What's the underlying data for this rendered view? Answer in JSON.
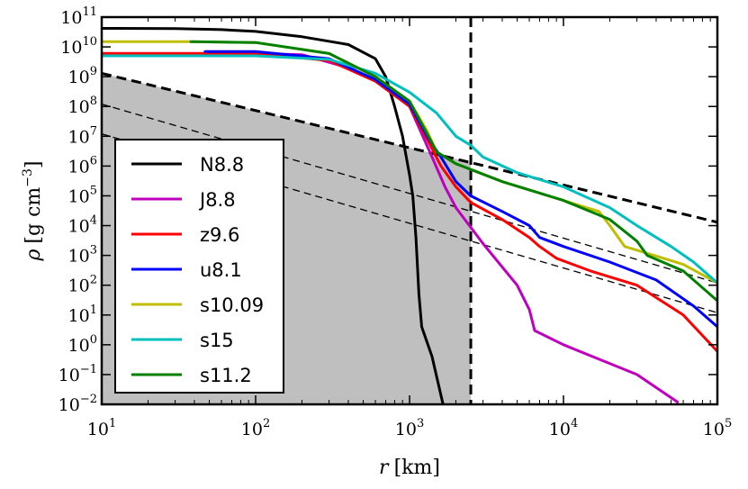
{
  "chart_data": {
    "type": "line",
    "title": "",
    "xlabel": {
      "symbol": "r",
      "unit": "[km]"
    },
    "ylabel": {
      "symbol": "ρ",
      "unit": "[g cm",
      "unit_exp": "−3",
      "unit_close": "]"
    },
    "x_scale": "log",
    "y_scale": "log",
    "xlim": [
      10,
      100000
    ],
    "ylim": [
      0.01,
      100000000000
    ],
    "x_ticks": [
      {
        "value": 10,
        "base": "10",
        "exp": "1"
      },
      {
        "value": 100,
        "base": "10",
        "exp": "2"
      },
      {
        "value": 1000,
        "base": "10",
        "exp": "3"
      },
      {
        "value": 10000,
        "base": "10",
        "exp": "4"
      },
      {
        "value": 100000,
        "base": "10",
        "exp": "5"
      }
    ],
    "y_ticks": [
      {
        "value": 0.01,
        "base": "10",
        "exp": "−2"
      },
      {
        "value": 0.1,
        "base": "10",
        "exp": "−1"
      },
      {
        "value": 1,
        "base": "10",
        "exp": "0"
      },
      {
        "value": 10,
        "base": "10",
        "exp": "1"
      },
      {
        "value": 100,
        "base": "10",
        "exp": "2"
      },
      {
        "value": 1000,
        "base": "10",
        "exp": "3"
      },
      {
        "value": 10000,
        "base": "10",
        "exp": "4"
      },
      {
        "value": 100000,
        "base": "10",
        "exp": "5"
      },
      {
        "value": 1000000,
        "base": "10",
        "exp": "6"
      },
      {
        "value": 10000000,
        "base": "10",
        "exp": "7"
      },
      {
        "value": 100000000,
        "base": "10",
        "exp": "8"
      },
      {
        "value": 1000000000,
        "base": "10",
        "exp": "9"
      },
      {
        "value": 10000000000,
        "base": "10",
        "exp": "10"
      },
      {
        "value": 100000000000,
        "base": "10",
        "exp": "11"
      }
    ],
    "legend_position": "lower-left",
    "series": [
      {
        "name": "N8.8",
        "color": "#000000",
        "points": [
          [
            10,
            42000000000.0
          ],
          [
            30,
            41000000000.0
          ],
          [
            60,
            38000000000.0
          ],
          [
            100,
            33000000000.0
          ],
          [
            200,
            22000000000.0
          ],
          [
            400,
            12000000000.0
          ],
          [
            600,
            4000000000.0
          ],
          [
            700,
            1000000000.0
          ],
          [
            800,
            100000000.0
          ],
          [
            900,
            10000000.0
          ],
          [
            1000,
            500000.0
          ],
          [
            1050,
            100000.0
          ],
          [
            1100,
            4000.0
          ],
          [
            1150,
            50
          ],
          [
            1200,
            4
          ],
          [
            1400,
            0.4
          ],
          [
            1650,
            0.01
          ]
        ]
      },
      {
        "name": "J8.8",
        "color": "#bf00bf",
        "points": [
          [
            10,
            6000000000.0
          ],
          [
            30,
            6000000000.0
          ],
          [
            100,
            6000000000.0
          ],
          [
            200,
            5500000000.0
          ],
          [
            400,
            2000000000.0
          ],
          [
            600,
            800000000.0
          ],
          [
            1000,
            100000000.0
          ],
          [
            1400,
            2000000.0
          ],
          [
            1700,
            200000.0
          ],
          [
            2000,
            40000.0
          ],
          [
            3000,
            2500.0
          ],
          [
            5000,
            100.0
          ],
          [
            6000,
            15
          ],
          [
            6500,
            3
          ],
          [
            10000,
            1
          ],
          [
            30000,
            0.1
          ],
          [
            55000,
            0.012
          ]
        ]
      },
      {
        "name": "z9.6",
        "color": "#ff0000",
        "points": [
          [
            10,
            6000000000.0
          ],
          [
            100,
            6000000000.0
          ],
          [
            300,
            3500000000.0
          ],
          [
            600,
            700000000.0
          ],
          [
            1000,
            100000000.0
          ],
          [
            1300,
            8000000.0
          ],
          [
            1600,
            1000000.0
          ],
          [
            2000,
            200000.0
          ],
          [
            2500,
            60000.0
          ],
          [
            4000,
            16000.0
          ],
          [
            6000,
            4000.0
          ],
          [
            7000,
            2000.0
          ],
          [
            9000,
            800.0
          ],
          [
            15000,
            300.0
          ],
          [
            30000,
            100.0
          ],
          [
            60000,
            10.0
          ],
          [
            100000,
            0.6
          ]
        ]
      },
      {
        "name": "u8.1",
        "color": "#0000ff",
        "points": [
          [
            47,
            7000000000.0
          ],
          [
            100,
            7000000000.0
          ],
          [
            300,
            4000000000.0
          ],
          [
            600,
            800000000.0
          ],
          [
            1000,
            120000000.0
          ],
          [
            1300,
            10000000.0
          ],
          [
            1600,
            2000000.0
          ],
          [
            2000,
            300000.0
          ],
          [
            2500,
            100000.0
          ],
          [
            4000,
            30000.0
          ],
          [
            6000,
            10000.0
          ],
          [
            7000,
            4000.0
          ],
          [
            10000,
            2000.0
          ],
          [
            20000,
            600.0
          ],
          [
            40000,
            150.0
          ],
          [
            70000,
            20.0
          ],
          [
            100000,
            4
          ]
        ]
      },
      {
        "name": "s10.09",
        "color": "#bfbf00",
        "points": [
          [
            10,
            15000000000.0
          ],
          [
            38,
            15000000000.0
          ],
          [
            100,
            14000000000.0
          ],
          [
            300,
            6000000000.0
          ],
          [
            600,
            1000000000.0
          ],
          [
            1000,
            150000000.0
          ],
          [
            1300,
            15000000.0
          ],
          [
            1500,
            3000000.0
          ],
          [
            2000,
            1200000.0
          ],
          [
            4000,
            300000.0
          ],
          [
            10000,
            70000.0
          ],
          [
            17000,
            30000.0
          ],
          [
            20000,
            10000.0
          ],
          [
            25000,
            2000.0
          ],
          [
            30000,
            1500.0
          ],
          [
            60000,
            500.0
          ],
          [
            100000,
            120.0
          ]
        ]
      },
      {
        "name": "s15",
        "color": "#00bfbf",
        "points": [
          [
            10,
            5000000000.0
          ],
          [
            100,
            5000000000.0
          ],
          [
            300,
            3800000000.0
          ],
          [
            600,
            1300000000.0
          ],
          [
            1000,
            300000000.0
          ],
          [
            1500,
            60000000.0
          ],
          [
            2000,
            10000000.0
          ],
          [
            2500,
            5000000.0
          ],
          [
            3000,
            2000000.0
          ],
          [
            5000,
            600000.0
          ],
          [
            10000,
            200000.0
          ],
          [
            20000,
            40000.0
          ],
          [
            30000,
            10000.0
          ],
          [
            50000,
            2000.0
          ],
          [
            70000,
            600.0
          ],
          [
            100000,
            120.0
          ]
        ]
      },
      {
        "name": "s11.2",
        "color": "#008000",
        "points": [
          [
            38,
            15000000000.0
          ],
          [
            100,
            14000000000.0
          ],
          [
            300,
            6000000000.0
          ],
          [
            600,
            1000000000.0
          ],
          [
            1000,
            150000000.0
          ],
          [
            1300,
            12000000.0
          ],
          [
            1500,
            3000000.0
          ],
          [
            2000,
            1200000.0
          ],
          [
            4000,
            300000.0
          ],
          [
            10000,
            70000.0
          ],
          [
            20000,
            16000.0
          ],
          [
            30000,
            3000.0
          ],
          [
            35000,
            1000.0
          ],
          [
            60000,
            300.0
          ],
          [
            100000,
            30.0
          ]
        ]
      }
    ],
    "reference_lines": [
      {
        "name": "dashed-line-thick",
        "style": "thick-dashed",
        "points": [
          [
            10,
            1300000000.0
          ],
          [
            100000,
            13000.0
          ]
        ]
      },
      {
        "name": "dashed-line-upper",
        "style": "thin-dashed",
        "points": [
          [
            10,
            120000000.0
          ],
          [
            100000,
            120.0
          ]
        ]
      },
      {
        "name": "dashed-line-lower",
        "style": "thin-dashed",
        "points": [
          [
            10,
            12000000.0
          ],
          [
            100000,
            12.0
          ]
        ]
      }
    ],
    "vertical_line_x": 2500,
    "shaded_region": {
      "x_max": 2500,
      "upper_boundary": "dashed-line-thick"
    }
  }
}
